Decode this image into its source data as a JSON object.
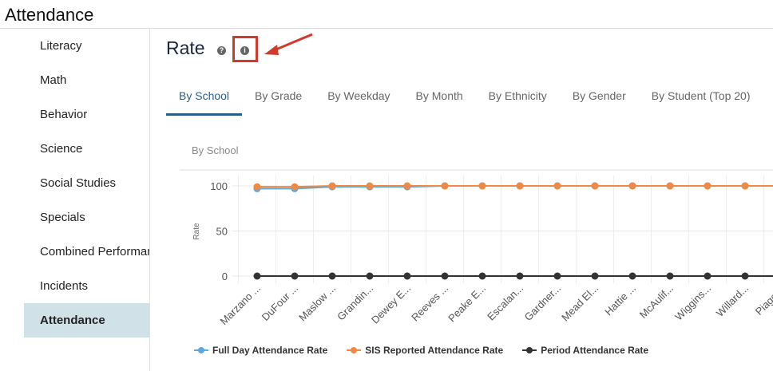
{
  "app": {
    "title": "Attendance"
  },
  "sidebar": {
    "items": [
      {
        "label": "Literacy"
      },
      {
        "label": "Math"
      },
      {
        "label": "Behavior"
      },
      {
        "label": "Science"
      },
      {
        "label": "Social Studies"
      },
      {
        "label": "Specials"
      },
      {
        "label": "Combined Performance"
      },
      {
        "label": "Incidents"
      },
      {
        "label": "Attendance",
        "active": true
      }
    ]
  },
  "header": {
    "title": "Rate",
    "help_icon": "question-circle-icon",
    "info_icon": "info-circle-icon",
    "help_glyph": "?",
    "info_glyph": "i"
  },
  "tabs": [
    {
      "label": "By School",
      "active": true
    },
    {
      "label": "By Grade"
    },
    {
      "label": "By Weekday"
    },
    {
      "label": "By Month"
    },
    {
      "label": "By Ethnicity"
    },
    {
      "label": "By Gender"
    },
    {
      "label": "By Student (Top 20)"
    }
  ],
  "chart_data": {
    "type": "line",
    "title": "By School",
    "ylabel": "Rate",
    "ylim": [
      0,
      100
    ],
    "yticks": [
      0,
      50,
      100
    ],
    "grid": true,
    "legend": "bottom",
    "categories": [
      "Marzano ...",
      "DuFour ...",
      "Maslow ...",
      "Grandin...",
      "Dewey E...",
      "Reeves ...",
      "Peake E...",
      "Escalan...",
      "Gardner...",
      "Mead El...",
      "Hattie ...",
      "McAulif...",
      "Wiggins...",
      "Willard...",
      "Piaget..."
    ],
    "series": [
      {
        "name": "Full Day Attendance Rate",
        "color": "#5aa9e0",
        "values": [
          97,
          97,
          99,
          99,
          99,
          100,
          100,
          100,
          100,
          100,
          100,
          100,
          100,
          100,
          100
        ]
      },
      {
        "name": "SIS Reported Attendance Rate",
        "color": "#ee8a45",
        "values": [
          99,
          99,
          100,
          100,
          100,
          100,
          100,
          100,
          100,
          100,
          100,
          100,
          100,
          100,
          100
        ]
      },
      {
        "name": "Period Attendance Rate",
        "color": "#333333",
        "values": [
          0,
          0,
          0,
          0,
          0,
          0,
          0,
          0,
          0,
          0,
          0,
          0,
          0,
          0,
          0
        ]
      }
    ]
  }
}
